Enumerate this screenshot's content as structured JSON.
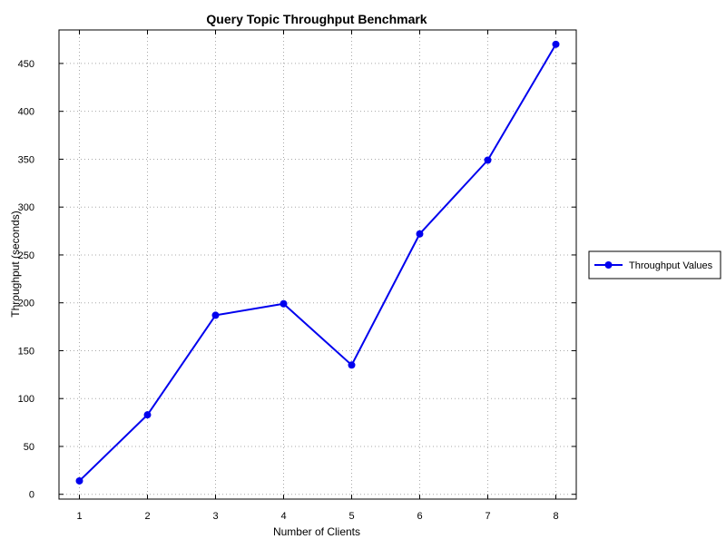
{
  "chart_data": {
    "type": "line",
    "title": "Query Topic Throughput Benchmark",
    "xlabel": "Number of Clients",
    "ylabel": "Throughput (seconds)",
    "x": [
      1,
      2,
      3,
      4,
      5,
      6,
      7,
      8
    ],
    "series": [
      {
        "name": "Throughput Values",
        "values": [
          14,
          83,
          187,
          199,
          135,
          272,
          349,
          470
        ],
        "color": "#0000ee"
      }
    ],
    "xlim": [
      0.7,
      8.3
    ],
    "ylim": [
      -5,
      485
    ],
    "x_ticks": [
      1,
      2,
      3,
      4,
      5,
      6,
      7,
      8
    ],
    "y_ticks": [
      0,
      50,
      100,
      150,
      200,
      250,
      300,
      350,
      400,
      450
    ],
    "grid": true,
    "legend_position": "right"
  }
}
